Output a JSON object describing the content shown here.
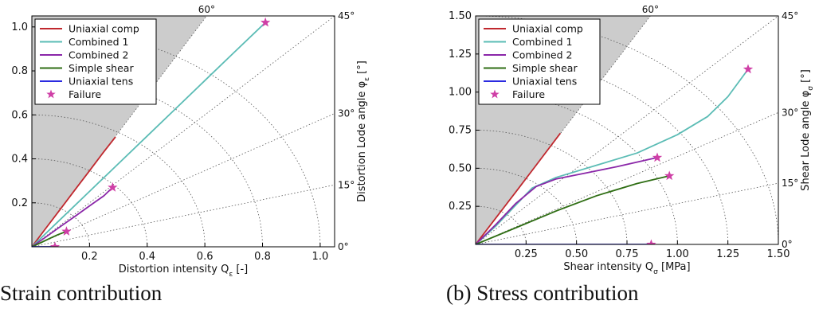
{
  "captions": {
    "left": "Strain contribution",
    "right": "(b) Stress contribution"
  },
  "legend_labels": [
    "Uniaxial comp",
    "Combined 1",
    "Combined 2",
    "Simple shear",
    "Uniaxial tens",
    "Failure"
  ],
  "colors": {
    "uniaxial_comp": "#c0282e",
    "combined_1": "#5bbcb5",
    "combined_2": "#8a26a8",
    "simple_shear": "#2f6e14",
    "uniaxial_tens": "#2b2be0",
    "failure": "#cf3fa6",
    "excluded_region": "#cccccc"
  },
  "chart_data": [
    {
      "type": "line",
      "projection": "polar",
      "xlabel": "Distortion intensity Q_ε [-]",
      "ylabel": "Distortion Lode angle φ_ε [°]",
      "xlim": [
        0,
        1.05
      ],
      "ylim": [
        0,
        1.05
      ],
      "xticks": [
        "0.2",
        "0.4",
        "0.6",
        "0.8",
        "1.0"
      ],
      "yticks": [
        "0.2",
        "0.4",
        "0.6",
        "0.8",
        "1.0"
      ],
      "x_tick_values": [
        0.2,
        0.4,
        0.6,
        0.8,
        1.0
      ],
      "y_tick_values": [
        0.2,
        0.4,
        0.6,
        0.8,
        1.0
      ],
      "angle_ticks": [
        "0°",
        "15°",
        "30°",
        "45°",
        "60°"
      ],
      "angle_tick_values": [
        0,
        15,
        30,
        45,
        60
      ],
      "radial_grid": [
        0.2,
        0.4,
        0.6,
        0.8,
        1.0
      ],
      "excluded_region_deg": [
        60,
        90
      ],
      "legend": "top-left",
      "grid": true,
      "series": [
        {
          "name": "Uniaxial comp",
          "key": "uniaxial_comp",
          "x": [
            0,
            0.05,
            0.1,
            0.15,
            0.2,
            0.25,
            0.29
          ],
          "y": [
            0,
            0.087,
            0.173,
            0.26,
            0.346,
            0.433,
            0.5
          ],
          "failure": null
        },
        {
          "name": "Combined 1",
          "key": "combined_1",
          "x": [
            0,
            0.1,
            0.2,
            0.3,
            0.4,
            0.5,
            0.6,
            0.7,
            0.81
          ],
          "y": [
            0,
            0.126,
            0.252,
            0.378,
            0.504,
            0.63,
            0.756,
            0.882,
            1.02
          ],
          "failure": [
            0.81,
            1.02
          ]
        },
        {
          "name": "Combined 2",
          "key": "combined_2",
          "x": [
            0,
            0.05,
            0.1,
            0.15,
            0.2,
            0.25,
            0.28
          ],
          "y": [
            0,
            0.046,
            0.093,
            0.139,
            0.186,
            0.232,
            0.27
          ],
          "failure": [
            0.28,
            0.27
          ]
        },
        {
          "name": "Simple shear",
          "key": "simple_shear",
          "x": [
            0,
            0.03,
            0.06,
            0.09,
            0.12
          ],
          "y": [
            0,
            0.018,
            0.037,
            0.055,
            0.07
          ],
          "failure": [
            0.12,
            0.07
          ]
        },
        {
          "name": "Uniaxial tens",
          "key": "uniaxial_tens",
          "x": [
            0,
            0.03,
            0.06,
            0.08
          ],
          "y": [
            0,
            0,
            0,
            0
          ],
          "failure": [
            0.08,
            0
          ]
        }
      ]
    },
    {
      "type": "line",
      "projection": "polar",
      "xlabel": "Shear intensity Q_σ [MPa]",
      "ylabel": "Shear Lode angle φ_σ [°]",
      "xlim": [
        0,
        1.5
      ],
      "ylim": [
        0,
        1.5
      ],
      "xticks": [
        "0.25",
        "0.50",
        "0.75",
        "1.00",
        "1.25",
        "1.50"
      ],
      "yticks": [
        "0.25",
        "0.50",
        "0.75",
        "1.00",
        "1.25",
        "1.50"
      ],
      "x_tick_values": [
        0.25,
        0.5,
        0.75,
        1.0,
        1.25,
        1.5
      ],
      "y_tick_values": [
        0.25,
        0.5,
        0.75,
        1.0,
        1.25,
        1.5
      ],
      "angle_ticks": [
        "0°",
        "15°",
        "30°",
        "45°",
        "60°"
      ],
      "angle_tick_values": [
        0,
        15,
        30,
        45,
        60
      ],
      "radial_grid": [
        0.25,
        0.5,
        0.75,
        1.0,
        1.25,
        1.5
      ],
      "excluded_region_deg": [
        60,
        90
      ],
      "legend": "top-left",
      "grid": true,
      "series": [
        {
          "name": "Uniaxial comp",
          "key": "uniaxial_comp",
          "x": [
            0,
            0.1,
            0.2,
            0.3,
            0.42
          ],
          "y": [
            0,
            0.173,
            0.346,
            0.52,
            0.73
          ],
          "failure": null
        },
        {
          "name": "Combined 1",
          "key": "combined_1",
          "x": [
            0,
            0.1,
            0.2,
            0.28,
            0.4,
            0.6,
            0.8,
            1.0,
            1.15,
            1.25,
            1.35
          ],
          "y": [
            0,
            0.12,
            0.26,
            0.37,
            0.44,
            0.52,
            0.6,
            0.72,
            0.84,
            0.97,
            1.15
          ],
          "failure": [
            1.35,
            1.15
          ]
        },
        {
          "name": "Combined 2",
          "key": "combined_2",
          "x": [
            0,
            0.1,
            0.2,
            0.3,
            0.4,
            0.55,
            0.7,
            0.9
          ],
          "y": [
            0,
            0.13,
            0.27,
            0.38,
            0.43,
            0.47,
            0.51,
            0.57
          ],
          "failure": [
            0.9,
            0.57
          ]
        },
        {
          "name": "Simple shear",
          "key": "simple_shear",
          "x": [
            0,
            0.2,
            0.4,
            0.6,
            0.8,
            0.96
          ],
          "y": [
            0,
            0.11,
            0.22,
            0.32,
            0.4,
            0.45
          ],
          "failure": [
            0.96,
            0.45
          ]
        },
        {
          "name": "Uniaxial tens",
          "key": "uniaxial_tens",
          "x": [
            0,
            0.3,
            0.6,
            0.87
          ],
          "y": [
            0,
            0,
            0,
            0
          ],
          "failure": [
            0.87,
            0
          ]
        }
      ]
    }
  ]
}
